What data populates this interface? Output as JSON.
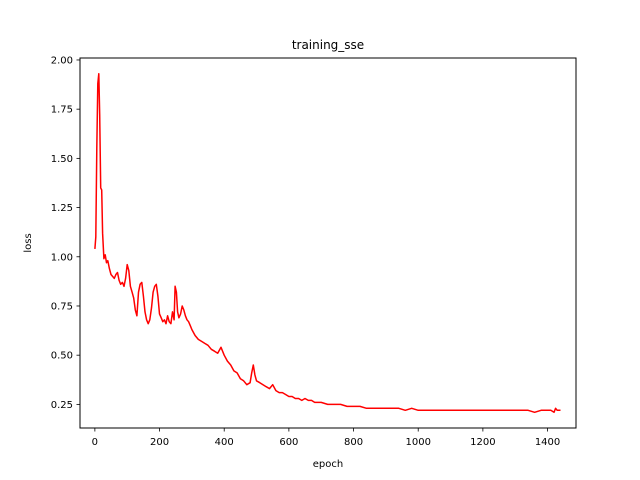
{
  "chart_data": {
    "type": "line",
    "title": "training_sse",
    "xlabel": "epoch",
    "ylabel": "loss",
    "xlim": [
      -46,
      1488
    ],
    "ylim": [
      0.13,
      2.01
    ],
    "x_ticks": [
      0,
      200,
      400,
      600,
      800,
      1000,
      1200,
      1400
    ],
    "x_tick_labels": [
      "0",
      "200",
      "400",
      "600",
      "800",
      "1000",
      "1200",
      "1400"
    ],
    "y_ticks": [
      0.25,
      0.5,
      0.75,
      1.0,
      1.25,
      1.5,
      1.75,
      2.0
    ],
    "y_tick_labels": [
      "0.25",
      "0.50",
      "0.75",
      "1.00",
      "1.25",
      "1.50",
      "1.75",
      "2.00"
    ],
    "grid": false,
    "legend": "none",
    "series": [
      {
        "color": "#ff0000",
        "x": [
          0,
          3,
          6,
          9,
          12,
          15,
          18,
          21,
          24,
          28,
          32,
          36,
          40,
          45,
          50,
          55,
          60,
          65,
          70,
          75,
          80,
          85,
          90,
          95,
          100,
          105,
          110,
          115,
          120,
          125,
          130,
          135,
          140,
          145,
          150,
          155,
          160,
          165,
          170,
          175,
          180,
          185,
          190,
          195,
          200,
          205,
          210,
          215,
          220,
          225,
          230,
          235,
          240,
          245,
          248,
          252,
          256,
          260,
          265,
          270,
          275,
          280,
          285,
          290,
          295,
          300,
          310,
          320,
          330,
          340,
          350,
          360,
          370,
          380,
          390,
          400,
          410,
          420,
          430,
          440,
          450,
          460,
          470,
          480,
          485,
          490,
          495,
          500,
          510,
          520,
          530,
          540,
          550,
          560,
          570,
          580,
          590,
          600,
          610,
          620,
          630,
          640,
          650,
          660,
          670,
          680,
          690,
          700,
          720,
          740,
          760,
          780,
          800,
          820,
          840,
          860,
          880,
          900,
          920,
          940,
          960,
          980,
          1000,
          1020,
          1040,
          1060,
          1080,
          1100,
          1120,
          1140,
          1160,
          1180,
          1200,
          1220,
          1240,
          1260,
          1280,
          1300,
          1320,
          1340,
          1360,
          1380,
          1400,
          1410,
          1420,
          1425,
          1430,
          1440
        ],
        "y": [
          1.04,
          1.1,
          1.55,
          1.88,
          1.93,
          1.72,
          1.35,
          1.34,
          1.12,
          0.99,
          1.01,
          0.97,
          0.98,
          0.94,
          0.91,
          0.9,
          0.89,
          0.91,
          0.92,
          0.88,
          0.86,
          0.87,
          0.85,
          0.89,
          0.96,
          0.93,
          0.85,
          0.82,
          0.79,
          0.73,
          0.7,
          0.82,
          0.86,
          0.87,
          0.8,
          0.72,
          0.68,
          0.66,
          0.68,
          0.74,
          0.82,
          0.85,
          0.86,
          0.8,
          0.71,
          0.69,
          0.67,
          0.68,
          0.66,
          0.7,
          0.67,
          0.66,
          0.72,
          0.68,
          0.85,
          0.82,
          0.72,
          0.69,
          0.71,
          0.75,
          0.73,
          0.7,
          0.68,
          0.67,
          0.65,
          0.63,
          0.6,
          0.58,
          0.57,
          0.56,
          0.55,
          0.53,
          0.52,
          0.51,
          0.54,
          0.5,
          0.47,
          0.45,
          0.42,
          0.41,
          0.38,
          0.37,
          0.35,
          0.36,
          0.41,
          0.45,
          0.4,
          0.37,
          0.36,
          0.35,
          0.34,
          0.33,
          0.35,
          0.32,
          0.31,
          0.31,
          0.3,
          0.29,
          0.29,
          0.28,
          0.28,
          0.27,
          0.28,
          0.27,
          0.27,
          0.26,
          0.26,
          0.26,
          0.25,
          0.25,
          0.25,
          0.24,
          0.24,
          0.24,
          0.23,
          0.23,
          0.23,
          0.23,
          0.23,
          0.23,
          0.22,
          0.23,
          0.22,
          0.22,
          0.22,
          0.22,
          0.22,
          0.22,
          0.22,
          0.22,
          0.22,
          0.22,
          0.22,
          0.22,
          0.22,
          0.22,
          0.22,
          0.22,
          0.22,
          0.22,
          0.21,
          0.22,
          0.22,
          0.22,
          0.21,
          0.23,
          0.22,
          0.22
        ]
      }
    ]
  }
}
